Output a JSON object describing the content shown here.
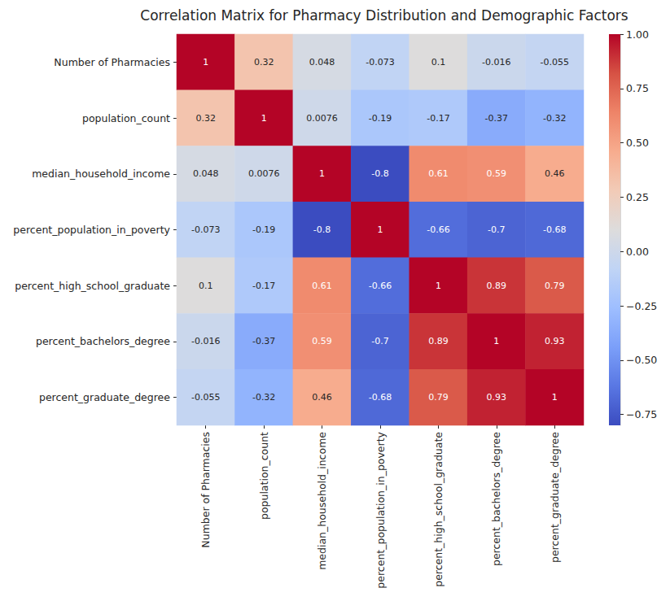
{
  "chart_data": {
    "type": "heatmap",
    "title": "Correlation Matrix for Pharmacy Distribution and Demographic Factors",
    "x_categories": [
      "Number of Pharmacies",
      "population_count",
      "median_household_income",
      "percent_population_in_poverty",
      "percent_high_school_graduate",
      "percent_bachelors_degree",
      "percent_graduate_degree"
    ],
    "y_categories": [
      "Number of Pharmacies",
      "population_count",
      "median_household_income",
      "percent_population_in_poverty",
      "percent_high_school_graduate",
      "percent_bachelors_degree",
      "percent_graduate_degree"
    ],
    "cells": [
      [
        1,
        0.32,
        0.048,
        -0.073,
        0.1,
        -0.016,
        -0.055
      ],
      [
        0.32,
        1,
        0.0076,
        -0.19,
        -0.17,
        -0.37,
        -0.32
      ],
      [
        0.048,
        0.0076,
        1,
        -0.8,
        0.61,
        0.59,
        0.46
      ],
      [
        -0.073,
        -0.19,
        -0.8,
        1,
        -0.66,
        -0.7,
        -0.68
      ],
      [
        0.1,
        -0.17,
        0.61,
        -0.66,
        1,
        0.89,
        0.79
      ],
      [
        -0.016,
        -0.37,
        0.59,
        -0.7,
        0.89,
        1,
        0.93
      ],
      [
        -0.055,
        -0.32,
        0.46,
        -0.68,
        0.79,
        0.93,
        1
      ]
    ],
    "data_labels": true,
    "color": "coolwarm",
    "colorbar": {
      "range": [
        -0.8,
        1
      ],
      "ticks": [
        {
          "value": -0.75,
          "label": "−0.75"
        },
        {
          "value": -0.5,
          "label": "−0.50"
        },
        {
          "value": -0.25,
          "label": "−0.25"
        },
        {
          "value": 0,
          "label": "0.00"
        },
        0.25,
        {
          "value": 0.5,
          "label": "0.50"
        },
        0.75,
        {
          "value": 1,
          "label": "1.00"
        }
      ]
    }
  }
}
